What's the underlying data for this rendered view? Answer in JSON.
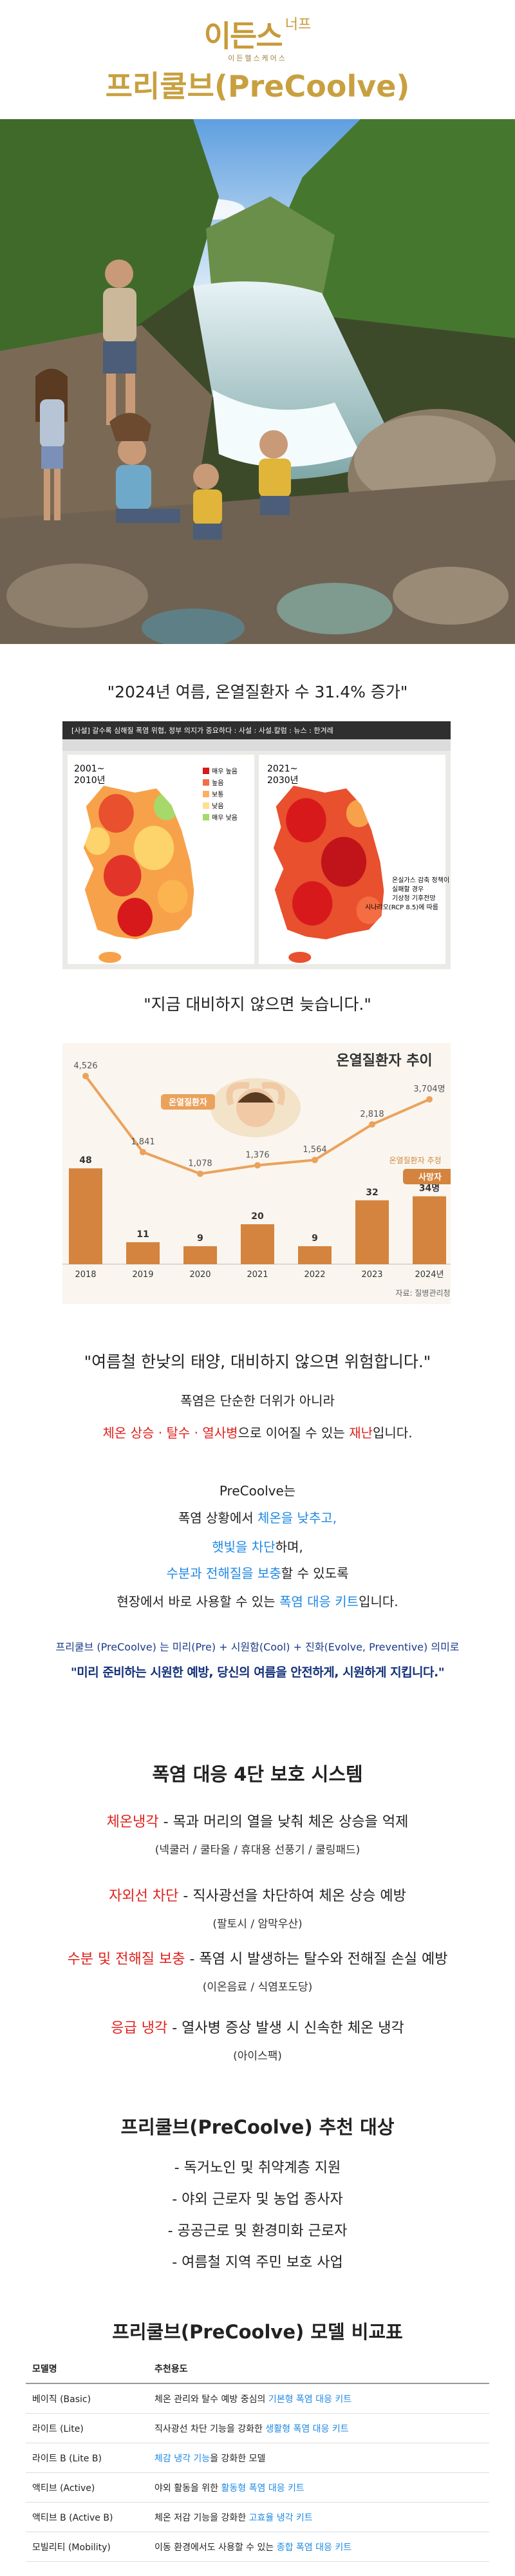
{
  "header": {
    "logo": "이든스",
    "logo_side": "너프",
    "logo_sub": "이든헬스케어스",
    "title": "프리쿨브(PreCoolve)"
  },
  "quote1": "\"2024년 여름, 온열질환자 수 31.4% 증가\"",
  "news": {
    "headline": "[사설] 갈수록 심해질 폭염 위협, 정부 의지가 중요하다 : 사설 : 사설.칼럼 : 뉴스 : 한겨레",
    "period_left": [
      "2001~",
      "2010년"
    ],
    "period_right": [
      "2021~",
      "2030년"
    ],
    "legend": [
      "매우 높음",
      "높음",
      "보통",
      "낮음",
      "매우 낮음"
    ],
    "note": [
      "온실가스 감축 정책이",
      "실패할 경우",
      "기상청 기후전망",
      "시나리오(RCP 8.5)에 따름"
    ]
  },
  "quote2": "\"지금 대비하지 않으면 늦습니다.\"",
  "chart_data": {
    "type": "bar_line",
    "title": "온열질환자 추이",
    "categories": [
      "2018",
      "2019",
      "2020",
      "2021",
      "2022",
      "2023",
      "2024년"
    ],
    "series": [
      {
        "name": "온열질환자",
        "type": "line",
        "color": "#eba25c",
        "values": [
          4526,
          1841,
          1078,
          1376,
          1564,
          2818,
          3704
        ],
        "value_labels": [
          "4,526",
          "1,841",
          "1,078",
          "1,376",
          "1,564",
          "2,818",
          "3,704명"
        ]
      },
      {
        "name": "사망자",
        "type": "bar",
        "color": "#d4843e",
        "values": [
          48,
          11,
          9,
          20,
          9,
          32,
          34
        ],
        "value_labels": [
          "48",
          "11",
          "9",
          "20",
          "9",
          "32",
          "34명"
        ]
      }
    ],
    "annotations": [
      "온열질환자 추정"
    ],
    "source": "자료: 질병관리청"
  },
  "quote3": "\"여름철 한낮의 태양, 대비하지 않으면 위험합니다.\"",
  "intro": {
    "l1": "폭염은 단순한 더위가 아니라",
    "l2": [
      "체온 상승 · 탈수 · 열사병",
      "으로 이어질 수 있는 ",
      "재난",
      "입니다."
    ],
    "l3": "PreCoolve는",
    "l4": [
      "폭염 상황에서 ",
      "체온을 낮추고,"
    ],
    "l5": [
      "햇빛을 차단",
      "하며,"
    ],
    "l6": [
      "수분과 전해질을 보충",
      "할 수 있도록"
    ],
    "l7": [
      "현장에서 바로 사용할 수 있는 ",
      "폭염 대응 키트",
      "입니다."
    ],
    "meaning": "프리쿨브 (PreCoolve) 는 미리(Pre) + 시원함(Cool) + 진화(Evolve, Preventive) 의미로",
    "slogan": "\"미리 준비하는 시원한 예방, 당신의 여름을 안전하게, 시원하게 지킵니다.\""
  },
  "system": {
    "title": "폭염 대응 4단 보호 시스템",
    "items": [
      {
        "name": "체온냉각",
        "desc": " - 목과 머리의 열을 낮춰 체온 상승을 억제",
        "products": "(넥쿨러 / 쿨타올 / 휴대용 선풍기 / 쿨링패드)"
      },
      {
        "name": "자외선 차단",
        "desc": " - 직사광선을 차단하여 체온 상승 예방",
        "products": "(팔토시 / 암막우산)"
      },
      {
        "name": "수분 및 전해질 보충",
        "desc": " - 폭염 시 발생하는 탈수와 전해질 손실 예방",
        "products": "(이온음료 / 식염포도당)"
      },
      {
        "name": "응급 냉각",
        "desc": " - 열사병 증상 발생 시 신속한 체온 냉각",
        "products": "(아이스팩)"
      }
    ]
  },
  "targets": {
    "title": "프리쿨브(PreCoolve) 추천 대상",
    "items": [
      "- 독거노인 및 취약계층 지원",
      "- 야외 근로자 및 농업 종사자",
      "- 공공근로 및 환경미화 근로자",
      "- 여름철 지역 주민 보호 사업"
    ]
  },
  "table": {
    "title": "프리쿨브(PreCoolve) 모델 비교표",
    "header": [
      "모델명",
      "추천용도"
    ],
    "rows": [
      {
        "model": "베이직 (Basic)",
        "before": "체온 관리와 탈수 예방 중심의 ",
        "highlight": "기본형 폭염 대응 키트"
      },
      {
        "model": "라이트 (Lite)",
        "before": "직사광선 차단 기능을 강화한 ",
        "highlight": "생활형 폭염 대응 키트"
      },
      {
        "model": "라이트 B (Lite B)",
        "highlight": "체감 냉각 기능",
        "after": "을 강화한 모델"
      },
      {
        "model": "액티브 (Active)",
        "before": "야외 활동을 위한 ",
        "highlight": "활동형 폭염 대응 키트"
      },
      {
        "model": "액티브 B (Active B)",
        "before": "체온 저감 기능을 강화한 ",
        "highlight": "고효율 냉각 키트"
      },
      {
        "model": "모빌리티 (Mobility)",
        "before": "이동 환경에서도 사용할 수 있는 ",
        "highlight": "종합 폭염 대응 키트"
      }
    ]
  }
}
